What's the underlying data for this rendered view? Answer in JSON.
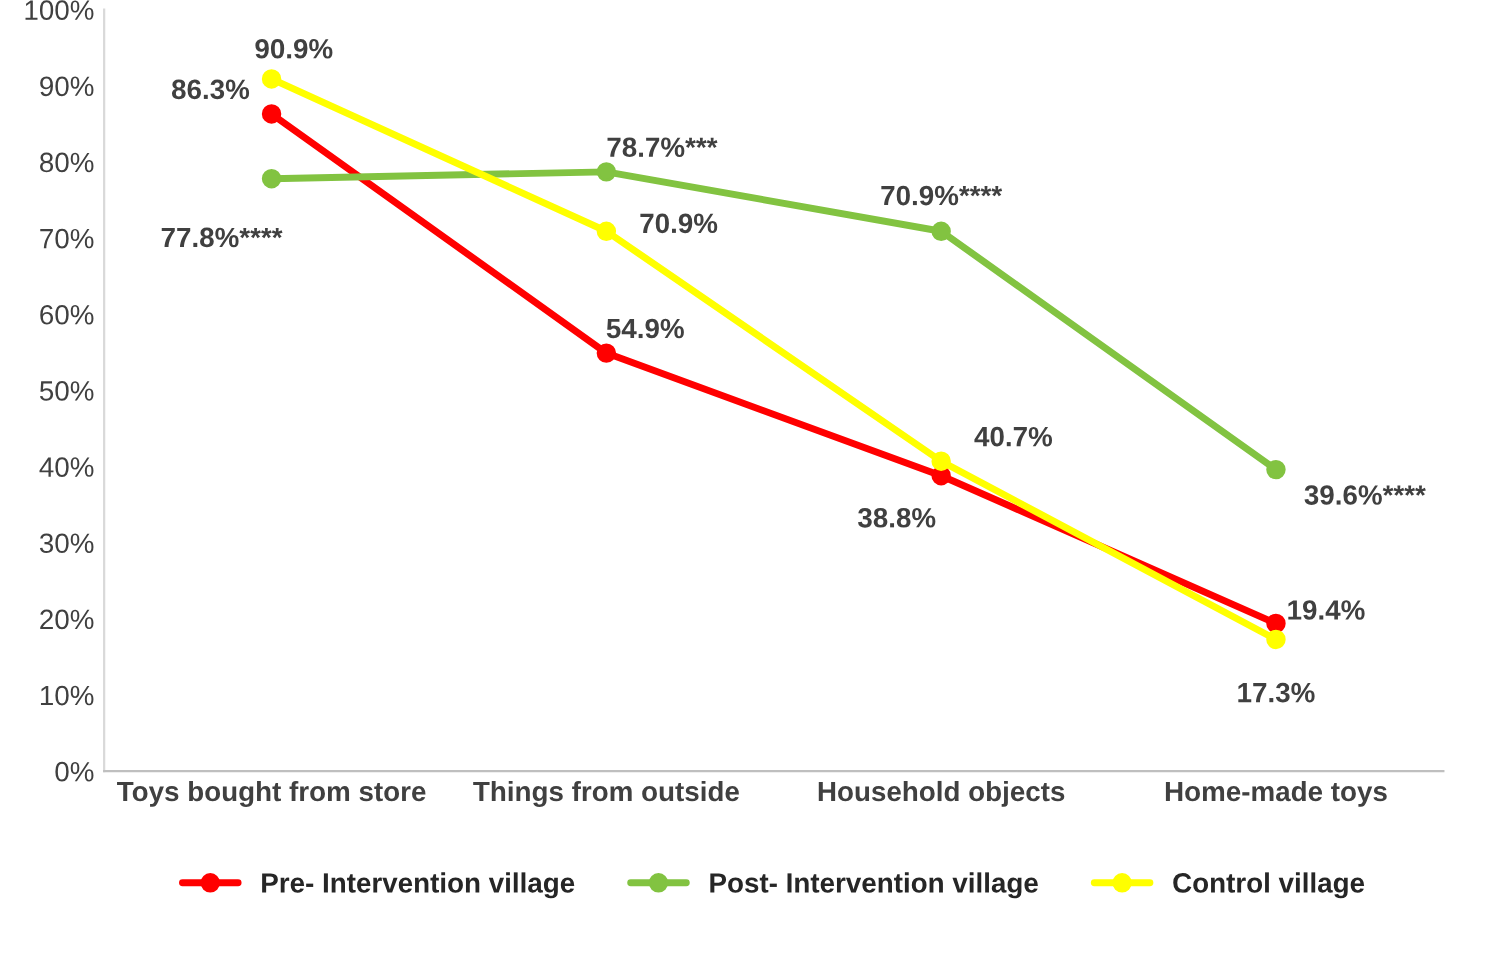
{
  "chart_data": {
    "type": "line",
    "categories": [
      "Toys bought from store",
      "Things from outside",
      "Household objects",
      "Home-made toys"
    ],
    "series": [
      {
        "name": "Pre- Intervention village",
        "color": "#ff0000",
        "values": [
          86.3,
          54.9,
          38.8,
          19.4
        ],
        "value_labels": [
          "86.3%",
          "54.9%",
          "38.8%",
          "19.4%"
        ]
      },
      {
        "name": "Post- Intervention village",
        "color": "#82c341",
        "values": [
          77.8,
          78.7,
          70.9,
          39.6
        ],
        "value_labels": [
          "77.8%****",
          "78.7%***",
          "70.9%****",
          "39.6%****"
        ]
      },
      {
        "name": "Control village",
        "color": "#ffff00",
        "values": [
          90.9,
          70.9,
          40.7,
          17.3
        ],
        "value_labels": [
          "90.9%",
          "70.9%",
          "40.7%",
          "17.3%"
        ]
      }
    ],
    "ylim": [
      0,
      100
    ],
    "yticks": [
      {
        "value": 0,
        "label": "0%"
      },
      {
        "value": 10,
        "label": "10%"
      },
      {
        "value": 20,
        "label": "20%"
      },
      {
        "value": 30,
        "label": "30%"
      },
      {
        "value": 40,
        "label": "40%"
      },
      {
        "value": 50,
        "label": "50%"
      },
      {
        "value": 60,
        "label": "60%"
      },
      {
        "value": 70,
        "label": "70%"
      },
      {
        "value": 80,
        "label": "80%"
      },
      {
        "value": 90,
        "label": "90%"
      },
      {
        "value": 100,
        "label": "100%"
      }
    ],
    "grid": false,
    "legend": "bottom",
    "marker": "circle",
    "line_style": "solid"
  }
}
